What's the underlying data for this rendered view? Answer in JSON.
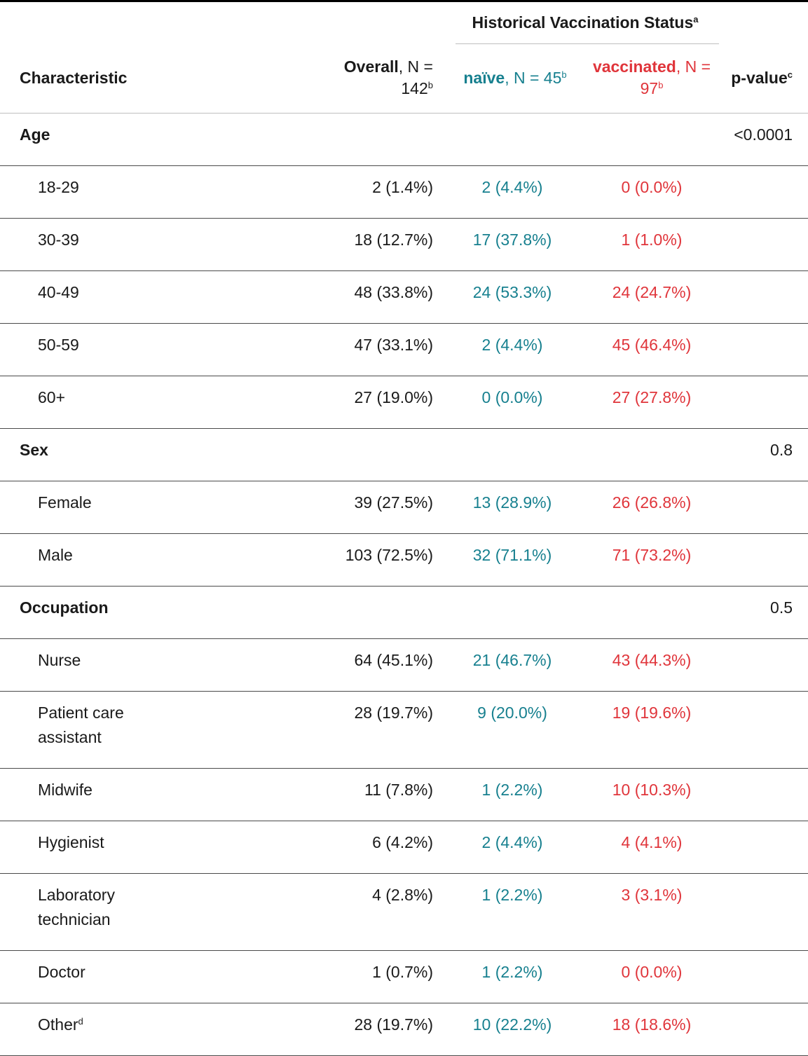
{
  "header": {
    "group_title": "Historical Vaccination Status",
    "group_sup": "a",
    "characteristic": "Characteristic",
    "overall_bold": "Overall",
    "overall_rest": ", N = 142",
    "overall_sup": "b",
    "naive_bold": "naïve",
    "naive_rest": ", N = 45",
    "naive_sup": "b",
    "vacc_bold": "vaccinated",
    "vacc_rest": ", N = 97",
    "vacc_sup": "b",
    "pvalue": "p-value",
    "pvalue_sup": "c"
  },
  "groups": {
    "age": {
      "label": "Age",
      "p": "<0.0001",
      "rows": [
        {
          "label": "18-29",
          "overall": "2 (1.4%)",
          "naive": "2 (4.4%)",
          "vacc": "0 (0.0%)"
        },
        {
          "label": "30-39",
          "overall": "18 (12.7%)",
          "naive": "17 (37.8%)",
          "vacc": "1 (1.0%)"
        },
        {
          "label": "40-49",
          "overall": "48 (33.8%)",
          "naive": "24 (53.3%)",
          "vacc": "24 (24.7%)"
        },
        {
          "label": "50-59",
          "overall": "47 (33.1%)",
          "naive": "2 (4.4%)",
          "vacc": "45 (46.4%)"
        },
        {
          "label": "60+",
          "overall": "27 (19.0%)",
          "naive": "0 (0.0%)",
          "vacc": "27 (27.8%)"
        }
      ]
    },
    "sex": {
      "label": "Sex",
      "p": "0.8",
      "rows": [
        {
          "label": "Female",
          "overall": "39 (27.5%)",
          "naive": "13 (28.9%)",
          "vacc": "26 (26.8%)"
        },
        {
          "label": "Male",
          "overall": "103 (72.5%)",
          "naive": "32 (71.1%)",
          "vacc": "71 (73.2%)"
        }
      ]
    },
    "occupation": {
      "label": "Occupation",
      "p": "0.5",
      "rows": [
        {
          "label": "Nurse",
          "overall": "64 (45.1%)",
          "naive": "21 (46.7%)",
          "vacc": "43 (44.3%)"
        },
        {
          "label": "Patient care assistant",
          "overall": "28 (19.7%)",
          "naive": "9 (20.0%)",
          "vacc": "19 (19.6%)"
        },
        {
          "label": "Midwife",
          "overall": "11 (7.8%)",
          "naive": "1 (2.2%)",
          "vacc": "10 (10.3%)"
        },
        {
          "label": "Hygienist",
          "overall": "6 (4.2%)",
          "naive": "2 (4.4%)",
          "vacc": "4 (4.1%)"
        },
        {
          "label": "Laboratory technician",
          "overall": "4 (2.8%)",
          "naive": "1 (2.2%)",
          "vacc": "3 (3.1%)"
        },
        {
          "label": "Doctor",
          "overall": "1 (0.7%)",
          "naive": "1 (2.2%)",
          "vacc": "0 (0.0%)"
        },
        {
          "label": "Other",
          "label_sup": "d",
          "overall": "28 (19.7%)",
          "naive": "10 (22.2%)",
          "vacc": "18 (18.6%)"
        }
      ]
    }
  },
  "colors": {
    "naive": "#17808f",
    "vaccinated": "#e0353b"
  }
}
